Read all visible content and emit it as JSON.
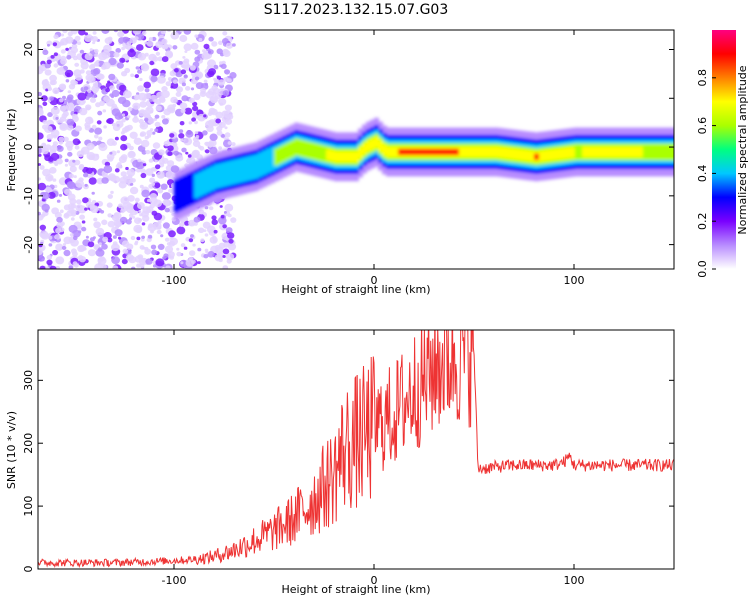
{
  "title": "S117.2023.132.15.07.G03",
  "chart_data": [
    {
      "type": "heatmap",
      "xlabel": "Height of straight line (km)",
      "ylabel": "Frequency (Hz)",
      "xlim": [
        -168,
        150
      ],
      "ylim": [
        -25,
        24
      ],
      "x_ticks": [
        -100,
        0,
        100
      ],
      "y_ticks": [
        -20,
        -10,
        0,
        10,
        20
      ],
      "colorbar": {
        "label": "Normalized spectral amplitude",
        "range": [
          0,
          1
        ],
        "ticks": [
          "0.0",
          "0.2",
          "0.4",
          "0.6",
          "0.8"
        ],
        "colors": [
          "#ffffff",
          "#b88cff",
          "#7a00ff",
          "#0000ff",
          "#00c8ff",
          "#00ff80",
          "#aaff00",
          "#ffff00",
          "#ff8000",
          "#ff0000",
          "#ff0080"
        ]
      },
      "ridge_center_hz": {
        "x": [
          -100,
          -90,
          -80,
          -70,
          -60,
          -50,
          -40,
          -30,
          -20,
          -10,
          -5,
          0,
          5,
          10,
          20,
          40,
          60,
          80,
          100,
          120,
          150
        ],
        "y": [
          -10,
          -8,
          -6,
          -5,
          -4,
          -2,
          0,
          -1,
          -2,
          -2,
          0,
          1,
          -1,
          -1,
          -1,
          -1,
          -1,
          -2,
          -1,
          -1,
          -1
        ]
      },
      "ridge_amplitude": {
        "x": [
          -100,
          -80,
          -60,
          -40,
          -20,
          0,
          20,
          40,
          60,
          80,
          100,
          120,
          150
        ],
        "y": [
          0.35,
          0.45,
          0.5,
          0.6,
          0.75,
          0.85,
          0.95,
          0.9,
          0.75,
          0.9,
          0.7,
          0.8,
          0.6
        ]
      },
      "noise_region_x": [
        -168,
        -70
      ]
    },
    {
      "type": "line",
      "xlabel": "Height of straight line (km)",
      "ylabel": "SNR (10 * v/v)",
      "xlim": [
        -168,
        150
      ],
      "ylim": [
        0,
        380
      ],
      "x_ticks": [
        -100,
        0,
        100
      ],
      "y_ticks": [
        0,
        100,
        200,
        300
      ],
      "color": "#ee3333",
      "series": [
        {
          "x": [
            -168,
            -150,
            -130,
            -110,
            -90,
            -80,
            -70,
            -60,
            -50,
            -40,
            -30,
            -20,
            -15,
            -10,
            -5,
            0,
            5,
            10,
            15,
            20,
            25,
            30,
            35,
            40,
            45,
            50,
            52,
            55,
            60,
            70,
            80,
            90,
            95,
            98,
            100,
            110,
            120,
            130,
            140,
            150
          ],
          "y": [
            10,
            10,
            10,
            12,
            15,
            20,
            30,
            45,
            60,
            80,
            110,
            150,
            190,
            200,
            210,
            225,
            235,
            245,
            265,
            285,
            300,
            320,
            335,
            340,
            345,
            345,
            160,
            160,
            162,
            165,
            165,
            165,
            170,
            180,
            165,
            165,
            165,
            165,
            165,
            165
          ]
        }
      ]
    }
  ]
}
